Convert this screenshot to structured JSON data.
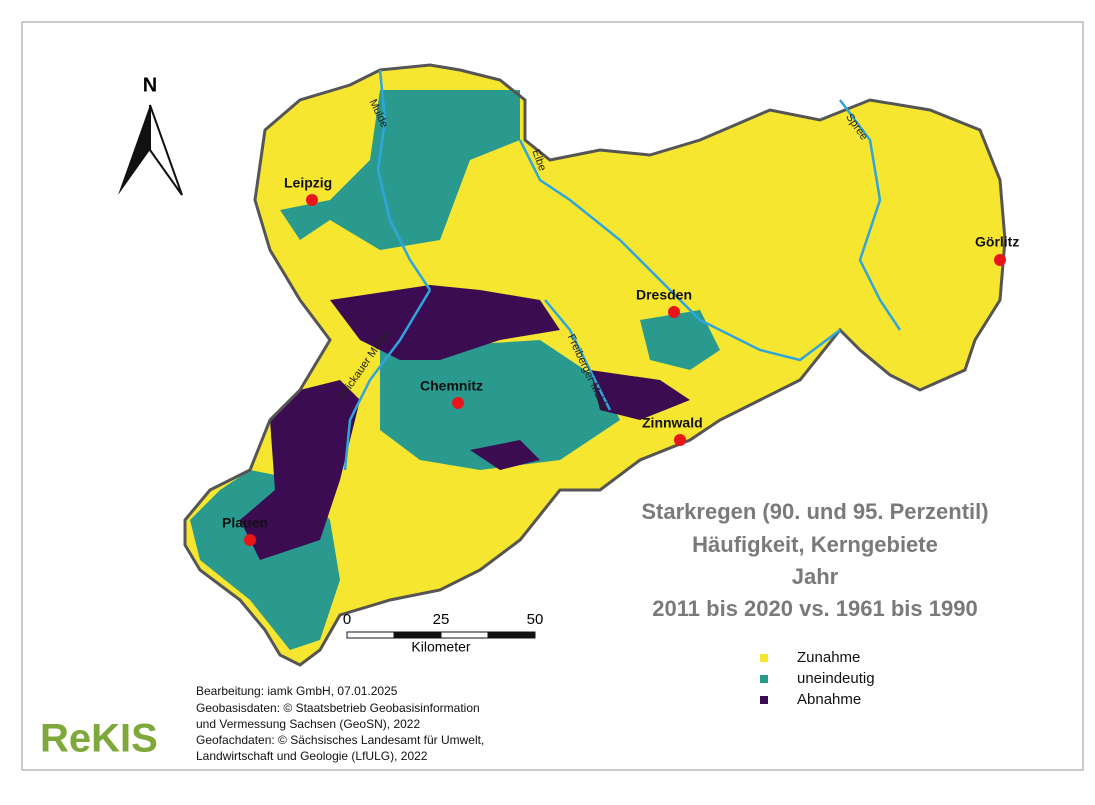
{
  "north": "N",
  "title": [
    "Starkregen (90. und 95. Perzentil)",
    "Häufigkeit, Kerngebiete",
    "Jahr",
    "2011 bis 2020 vs. 1961 bis 1990"
  ],
  "cities": [
    "Leipzig",
    "Görlitz",
    "Dresden",
    "Chemnitz",
    "Zinnwald",
    "Plauen"
  ],
  "rivers": [
    "Mulde",
    "Elbe",
    "Spree",
    "Zwickauer Mulde",
    "Freiberger Mulde"
  ],
  "scale_bar": {
    "ticks": [
      0,
      25,
      50
    ],
    "unit": "Kilometer"
  },
  "legend": [
    {
      "label": "Zunahme",
      "color": "#f7e62f"
    },
    {
      "label": "uneindeutig",
      "color": "#2a9a8f"
    },
    {
      "label": "Abnahme",
      "color": "#3b0c52"
    }
  ],
  "credits": [
    "Bearbeitung: iamk GmbH, 07.01.2025",
    "Geobasisdaten: © Staatsbetrieb Geobasisinformation",
    "und Vermessung Sachsen (GeoSN), 2022",
    "Geofachdaten: © Sächsisches Landesamt für Umwelt,",
    "Landwirtschaft und Geologie (LfULG), 2022"
  ],
  "logo": "ReKIS"
}
